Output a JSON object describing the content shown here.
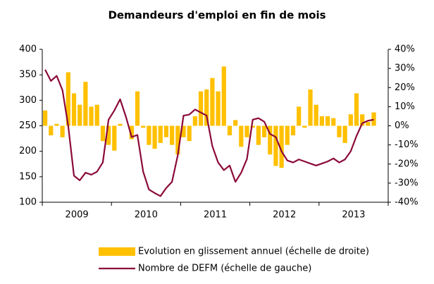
{
  "chart_data": {
    "type": "bar_line",
    "title": "Demandeurs d'emploi en fin de mois",
    "categories": [
      null,
      null,
      null,
      null,
      null,
      null,
      null,
      null,
      null,
      null,
      null,
      null,
      null,
      null,
      null,
      null,
      null,
      null,
      null,
      null,
      null,
      null,
      null,
      null,
      null,
      null,
      null,
      null,
      null,
      null,
      null,
      null,
      null,
      null,
      null,
      null,
      null,
      null,
      null,
      null,
      null,
      null,
      null,
      null,
      null,
      null,
      null,
      null,
      null,
      null,
      null,
      null,
      null,
      null,
      null,
      null,
      null,
      null
    ],
    "year_labels": [
      "2009",
      "2010",
      "2011",
      "2012",
      "2013"
    ],
    "series": [
      {
        "name": "Evolution en glissement annuel (échelle de droite)",
        "kind": "bar",
        "axis": "y2",
        "color": "#ffc000",
        "values": [
          8,
          -5,
          1,
          -6,
          28,
          17,
          11,
          23,
          10,
          11,
          -8,
          -10,
          -13,
          1,
          0,
          -7,
          18,
          -1,
          -10,
          -12,
          -9,
          -6,
          -10,
          -15,
          -6,
          -8,
          5,
          18,
          19,
          25,
          18,
          31,
          -5,
          3,
          -11,
          -6,
          -1,
          -10,
          -6,
          -15,
          -21,
          -22,
          -10,
          -5,
          10,
          -1,
          19,
          11,
          5,
          5,
          4,
          -6,
          -9,
          6,
          17,
          6,
          2,
          7
        ]
      },
      {
        "name": "Nombre de DEFM (échelle de gauche)",
        "kind": "line",
        "axis": "y",
        "color": "#8b0a3a",
        "values": [
          360,
          338,
          348,
          320,
          250,
          152,
          143,
          158,
          154,
          160,
          178,
          262,
          280,
          302,
          268,
          228,
          232,
          160,
          125,
          118,
          112,
          128,
          140,
          192,
          270,
          272,
          282,
          276,
          270,
          210,
          178,
          163,
          172,
          140,
          158,
          185,
          262,
          265,
          258,
          234,
          228,
          200,
          182,
          178,
          184,
          180,
          176,
          172,
          176,
          180,
          186,
          178,
          184,
          200,
          230,
          255,
          260,
          262
        ]
      }
    ],
    "ylim": [
      100,
      400
    ],
    "yticks": [
      100,
      150,
      200,
      250,
      300,
      350,
      400
    ],
    "y2lim": [
      -40,
      40
    ],
    "y2ticks": [
      {
        "value": -40,
        "label": "-40%"
      },
      {
        "value": -30,
        "label": "-30%"
      },
      {
        "value": -20,
        "label": "-20%"
      },
      {
        "value": -10,
        "label": "-10%"
      },
      {
        "value": 0,
        "label": "0%"
      },
      {
        "value": 10,
        "label": "10%"
      },
      {
        "value": 20,
        "label": "20%"
      },
      {
        "value": 30,
        "label": "30%"
      },
      {
        "value": 40,
        "label": "40%"
      }
    ],
    "grid": false,
    "legend": "bottom"
  }
}
